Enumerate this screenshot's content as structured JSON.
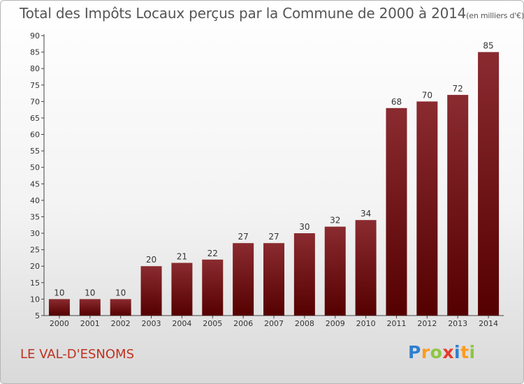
{
  "page": {
    "title": "Total des Impôts Locaux perçus par la Commune de 2000 à 2014",
    "title_unit": "(en milliers d'€)",
    "commune_name": "LE VAL-D'ESNOMS"
  },
  "logo": {
    "letters": [
      {
        "ch": "P",
        "color": "#2f7fd0"
      },
      {
        "ch": "r",
        "color": "#ff9b1a"
      },
      {
        "ch": "o",
        "color": "#8dc63f"
      },
      {
        "ch": "x",
        "color": "#e63a2b"
      },
      {
        "ch": "i",
        "color": "#2f7fd0"
      },
      {
        "ch": "t",
        "color": "#ff9b1a"
      },
      {
        "ch": "i",
        "color": "#8dc63f"
      }
    ]
  },
  "chart_data": {
    "type": "bar",
    "title": "Total des Impôts Locaux perçus par la Commune de 2000 à 2014",
    "xlabel": "",
    "ylabel": "",
    "categories": [
      "2000",
      "2001",
      "2002",
      "2003",
      "2004",
      "2005",
      "2006",
      "2007",
      "2008",
      "2009",
      "2010",
      "2011",
      "2012",
      "2013",
      "2014"
    ],
    "values": [
      10,
      10,
      10,
      20,
      21,
      22,
      27,
      27,
      30,
      32,
      34,
      68,
      70,
      72,
      85
    ],
    "ylim": [
      5,
      90
    ],
    "yticks": [
      5,
      10,
      15,
      20,
      25,
      30,
      35,
      40,
      45,
      50,
      55,
      60,
      65,
      70,
      75,
      80,
      85,
      90
    ],
    "grid": false,
    "data_labels": true,
    "bar_color_light": "#8a2b30",
    "bar_color_dark": "#550000"
  }
}
